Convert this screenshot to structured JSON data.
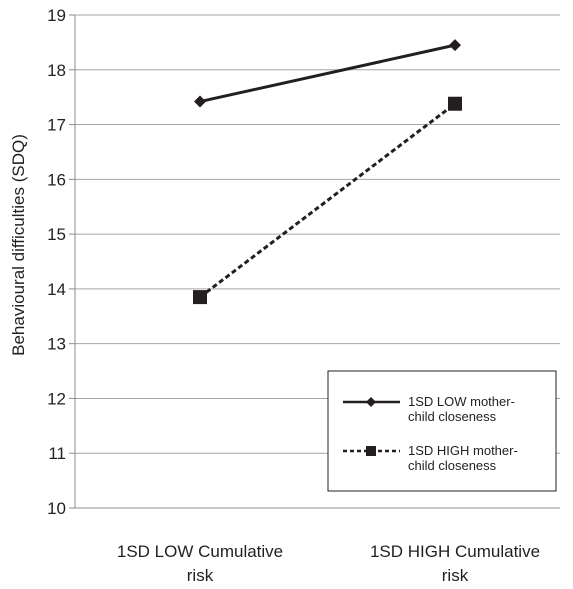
{
  "chart_data": {
    "type": "line",
    "title": "",
    "xlabel": "",
    "ylabel": "Behavioural difficulties (SDQ)",
    "categories": [
      [
        "1SD LOW Cumulative",
        "risk"
      ],
      [
        "1SD HIGH Cumulative",
        "risk"
      ]
    ],
    "ylim": [
      10,
      19
    ],
    "yticks": [
      10,
      11,
      12,
      13,
      14,
      15,
      16,
      17,
      18,
      19
    ],
    "grid": "horizontal",
    "legend_position": "bottom-right",
    "series": [
      {
        "name": [
          "1SD LOW mother-",
          "child closeness"
        ],
        "values": [
          17.42,
          18.45
        ],
        "line": "solid",
        "marker": "diamond",
        "color": "#231f20"
      },
      {
        "name": [
          "1SD HIGH mother-",
          "child closeness"
        ],
        "values": [
          13.85,
          17.38
        ],
        "line": "dashed",
        "marker": "square",
        "color": "#231f20"
      }
    ],
    "colors": {
      "grid": "#a6a6a6",
      "axis": "#8c8c8c",
      "text": "#231f20"
    }
  }
}
